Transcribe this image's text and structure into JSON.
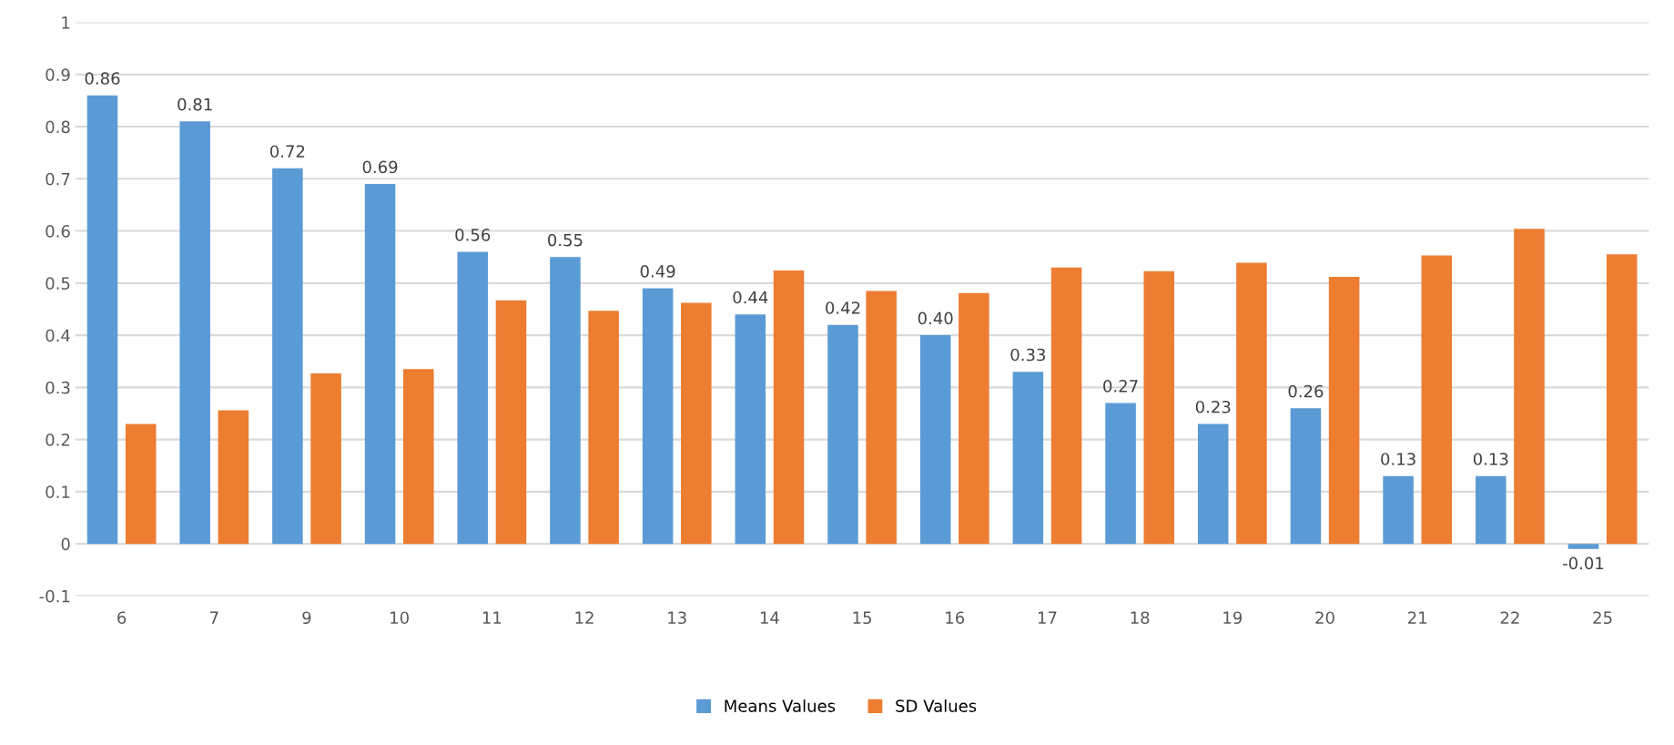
{
  "chart_data": {
    "type": "bar",
    "categories": [
      "6",
      "7",
      "9",
      "10",
      "11",
      "12",
      "13",
      "14",
      "15",
      "16",
      "17",
      "18",
      "19",
      "20",
      "21",
      "22",
      "25"
    ],
    "series": [
      {
        "name": "Means Values",
        "color": "#5b9bd5",
        "values": [
          0.86,
          0.81,
          0.72,
          0.69,
          0.56,
          0.55,
          0.49,
          0.44,
          0.42,
          0.4,
          0.33,
          0.27,
          0.23,
          0.26,
          0.13,
          0.13,
          -0.01
        ],
        "value_labels": [
          "0.86",
          "0.81",
          "0.72",
          "0.69",
          "0.56",
          "0.55",
          "0.49",
          "0.44",
          "0.42",
          "0.40",
          "0.33",
          "0.27",
          "0.23",
          "0.26",
          "0.13",
          "0.13",
          "-0.01"
        ]
      },
      {
        "name": "SD Values",
        "color": "#ed7d31",
        "values": [
          0.23,
          0.256,
          0.327,
          0.335,
          0.467,
          0.447,
          0.462,
          0.524,
          0.485,
          0.481,
          0.53,
          0.523,
          0.539,
          0.512,
          0.553,
          0.604,
          0.555
        ]
      }
    ],
    "ylim": [
      -0.1,
      1
    ],
    "yticks": [
      -0.1,
      0,
      0.1,
      0.2,
      0.3,
      0.4,
      0.5,
      0.6,
      0.7,
      0.8,
      0.9,
      1
    ],
    "grid": "y",
    "legend": "bottom"
  }
}
